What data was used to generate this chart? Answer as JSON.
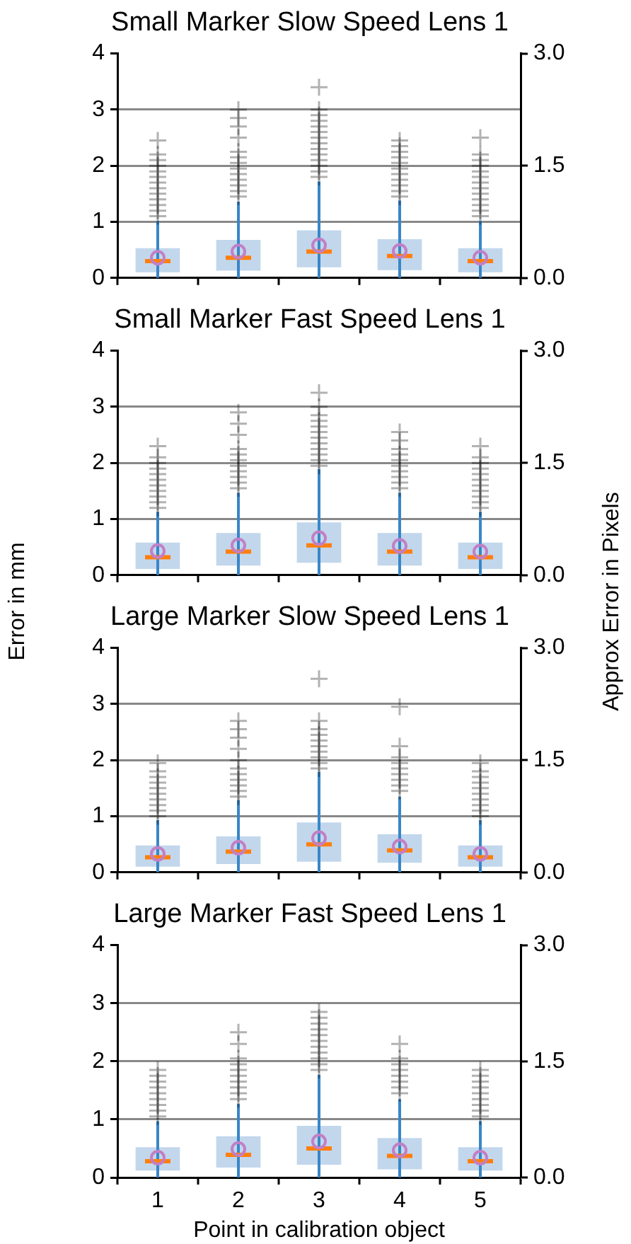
{
  "chart_data": [
    {
      "type": "box",
      "title": "Small Marker Slow Speed Lens 1",
      "categories": [
        "1",
        "2",
        "3",
        "4",
        "5"
      ],
      "ylim": [
        0,
        4
      ],
      "yticks": [
        0,
        1,
        2,
        3,
        4
      ],
      "y2lim": [
        0,
        3
      ],
      "y2ticks": [
        {
          "value": 0,
          "label": "0.0"
        },
        {
          "value": 1.5,
          "label": "1.5"
        },
        {
          "value": 3,
          "label": "3.0"
        }
      ],
      "grid": "y",
      "tick_labels": "y",
      "color": "#c2d7ec",
      "marker": "circle",
      "boxes": [
        {
          "low": 0,
          "q1": 0.1,
          "median": 0.3,
          "q3": 0.53,
          "high": 1.02,
          "mean": 0.36,
          "outliers": [
            1.1,
            1.2,
            1.3,
            1.4,
            1.5,
            1.6,
            1.7,
            1.8,
            1.9,
            2.0,
            2.1,
            2.2,
            2.45
          ]
        },
        {
          "low": 0,
          "q1": 0.13,
          "median": 0.36,
          "q3": 0.68,
          "high": 1.36,
          "mean": 0.47,
          "outliers": [
            1.45,
            1.55,
            1.65,
            1.75,
            1.85,
            1.95,
            2.05,
            2.15,
            2.25,
            2.5,
            2.7,
            2.85,
            3.0
          ]
        },
        {
          "low": 0,
          "q1": 0.19,
          "median": 0.47,
          "q3": 0.85,
          "high": 1.72,
          "mean": 0.58,
          "outliers": [
            1.8,
            1.9,
            2.0,
            2.1,
            2.2,
            2.3,
            2.4,
            2.5,
            2.6,
            2.7,
            2.8,
            2.9,
            3.0,
            3.4
          ]
        },
        {
          "low": 0,
          "q1": 0.14,
          "median": 0.39,
          "q3": 0.69,
          "high": 1.38,
          "mean": 0.48,
          "outliers": [
            1.45,
            1.55,
            1.65,
            1.75,
            1.85,
            1.95,
            2.05,
            2.15,
            2.25,
            2.35,
            2.45
          ]
        },
        {
          "low": 0,
          "q1": 0.1,
          "median": 0.3,
          "q3": 0.53,
          "high": 1.02,
          "mean": 0.36,
          "outliers": [
            1.1,
            1.2,
            1.3,
            1.4,
            1.5,
            1.6,
            1.7,
            1.8,
            1.9,
            2.0,
            2.1,
            2.2,
            2.5
          ]
        }
      ]
    },
    {
      "type": "box",
      "title": "Small Marker Fast Speed Lens 1",
      "categories": [
        "1",
        "2",
        "3",
        "4",
        "5"
      ],
      "ylim": [
        0,
        4
      ],
      "yticks": [
        0,
        1,
        2,
        3,
        4
      ],
      "y2lim": [
        0,
        3
      ],
      "y2ticks": [
        {
          "value": 0,
          "label": "0.0"
        },
        {
          "value": 1.5,
          "label": "1.5"
        },
        {
          "value": 3,
          "label": "3.0"
        }
      ],
      "grid": "y",
      "tick_labels": "y",
      "color": "#c2d7ec",
      "marker": "circle",
      "ylabel": "Error in mm",
      "y2label": "Approx Error in Pixels",
      "boxes": [
        {
          "low": 0,
          "q1": 0.11,
          "median": 0.32,
          "q3": 0.58,
          "high": 1.13,
          "mean": 0.43,
          "outliers": [
            1.2,
            1.3,
            1.4,
            1.5,
            1.6,
            1.7,
            1.8,
            1.9,
            2.0,
            2.1,
            2.3
          ]
        },
        {
          "low": 0,
          "q1": 0.17,
          "median": 0.42,
          "q3": 0.75,
          "high": 1.47,
          "mean": 0.53,
          "outliers": [
            1.55,
            1.65,
            1.75,
            1.85,
            1.95,
            2.05,
            2.15,
            2.25,
            2.5,
            2.7,
            2.9
          ]
        },
        {
          "low": 0,
          "q1": 0.22,
          "median": 0.53,
          "q3": 0.94,
          "high": 1.89,
          "mean": 0.66,
          "outliers": [
            1.95,
            2.05,
            2.15,
            2.25,
            2.35,
            2.45,
            2.55,
            2.65,
            2.75,
            2.85,
            3.0,
            3.25
          ]
        },
        {
          "low": 0,
          "q1": 0.17,
          "median": 0.42,
          "q3": 0.75,
          "high": 1.47,
          "mean": 0.52,
          "outliers": [
            1.55,
            1.65,
            1.75,
            1.85,
            1.95,
            2.05,
            2.15,
            2.25,
            2.4,
            2.55
          ]
        },
        {
          "low": 0,
          "q1": 0.11,
          "median": 0.32,
          "q3": 0.58,
          "high": 1.13,
          "mean": 0.42,
          "outliers": [
            1.2,
            1.3,
            1.4,
            1.5,
            1.6,
            1.7,
            1.8,
            1.9,
            2.0,
            2.1,
            2.3
          ]
        }
      ]
    },
    {
      "type": "box",
      "title": "Large Marker Slow Speed Lens 1",
      "categories": [
        "1",
        "2",
        "3",
        "4",
        "5"
      ],
      "ylim": [
        0,
        4
      ],
      "yticks": [
        0,
        1,
        2,
        3,
        4
      ],
      "y2lim": [
        0,
        3
      ],
      "y2ticks": [
        {
          "value": 0,
          "label": "0.0"
        },
        {
          "value": 1.5,
          "label": "1.5"
        },
        {
          "value": 3,
          "label": "3.0"
        }
      ],
      "grid": "y",
      "tick_labels": "y",
      "color": "#c2d7ec",
      "marker": "circle",
      "boxes": [
        {
          "low": 0,
          "q1": 0.1,
          "median": 0.27,
          "q3": 0.48,
          "high": 0.93,
          "mean": 0.33,
          "outliers": [
            1.0,
            1.1,
            1.2,
            1.3,
            1.4,
            1.5,
            1.6,
            1.7,
            1.8,
            1.95
          ]
        },
        {
          "low": 0,
          "q1": 0.15,
          "median": 0.37,
          "q3": 0.64,
          "high": 1.29,
          "mean": 0.44,
          "outliers": [
            1.35,
            1.45,
            1.55,
            1.65,
            1.75,
            1.85,
            2.0,
            2.2,
            2.4,
            2.55,
            2.7
          ]
        },
        {
          "low": 0,
          "q1": 0.19,
          "median": 0.5,
          "q3": 0.89,
          "high": 1.79,
          "mean": 0.61,
          "outliers": [
            1.85,
            1.95,
            2.05,
            2.15,
            2.25,
            2.35,
            2.45,
            2.55,
            2.7,
            3.45
          ]
        },
        {
          "low": 0,
          "q1": 0.17,
          "median": 0.39,
          "q3": 0.68,
          "high": 1.35,
          "mean": 0.46,
          "outliers": [
            1.45,
            1.55,
            1.65,
            1.75,
            1.85,
            1.95,
            2.05,
            2.25,
            2.95
          ]
        },
        {
          "low": 0,
          "q1": 0.1,
          "median": 0.27,
          "q3": 0.48,
          "high": 0.93,
          "mean": 0.33,
          "outliers": [
            1.0,
            1.1,
            1.2,
            1.3,
            1.4,
            1.5,
            1.6,
            1.7,
            1.8,
            1.95
          ]
        }
      ]
    },
    {
      "type": "box",
      "title": "Large Marker Fast Speed Lens 1",
      "categories": [
        "1",
        "2",
        "3",
        "4",
        "5"
      ],
      "ylim": [
        0,
        4
      ],
      "yticks": [
        0,
        1,
        2,
        3,
        4
      ],
      "y2lim": [
        0,
        3
      ],
      "y2ticks": [
        {
          "value": 0,
          "label": "0.0"
        },
        {
          "value": 1.5,
          "label": "1.5"
        },
        {
          "value": 3,
          "label": "3.0"
        }
      ],
      "grid": "y",
      "color": "#c2d7ec",
      "marker": "circle",
      "xlabel": "Point in calibration object",
      "boxes": [
        {
          "low": 0,
          "q1": 0.12,
          "median": 0.28,
          "q3": 0.52,
          "high": 0.97,
          "mean": 0.34,
          "outliers": [
            1.05,
            1.15,
            1.25,
            1.35,
            1.45,
            1.55,
            1.65,
            1.75,
            1.85
          ]
        },
        {
          "low": 0,
          "q1": 0.17,
          "median": 0.39,
          "q3": 0.71,
          "high": 1.27,
          "mean": 0.49,
          "outliers": [
            1.35,
            1.45,
            1.55,
            1.65,
            1.75,
            1.85,
            1.95,
            2.05,
            2.3,
            2.5
          ]
        },
        {
          "low": 0,
          "q1": 0.22,
          "median": 0.5,
          "q3": 0.89,
          "high": 1.77,
          "mean": 0.62,
          "outliers": [
            1.85,
            1.95,
            2.05,
            2.15,
            2.25,
            2.35,
            2.45,
            2.55,
            2.65,
            2.75,
            2.85
          ]
        },
        {
          "low": 0,
          "q1": 0.14,
          "median": 0.37,
          "q3": 0.68,
          "high": 1.35,
          "mean": 0.47,
          "outliers": [
            1.45,
            1.55,
            1.65,
            1.75,
            1.85,
            1.95,
            2.05,
            2.3
          ]
        },
        {
          "low": 0,
          "q1": 0.12,
          "median": 0.28,
          "q3": 0.52,
          "high": 0.97,
          "mean": 0.34,
          "outliers": [
            1.05,
            1.15,
            1.25,
            1.35,
            1.45,
            1.55,
            1.65,
            1.75,
            1.85
          ]
        }
      ]
    }
  ]
}
